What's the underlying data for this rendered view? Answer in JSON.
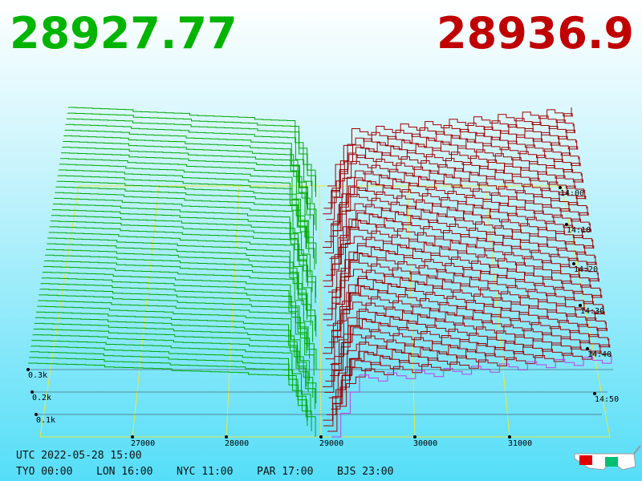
{
  "header": {
    "bid": "28927.77",
    "ask": "28936.9"
  },
  "price_axis": [
    "27000",
    "28000",
    "29000",
    "30000",
    "31000"
  ],
  "time_axis": [
    "14:00",
    "14:10",
    "14:20",
    "14:30",
    "14:40",
    "14:50"
  ],
  "depth_axis": [
    "0.3k",
    "0.2k",
    "0.1k"
  ],
  "footer": {
    "utc": "UTC 2022-05-28 15:00",
    "clocks": [
      "TYO 00:00",
      "LON 16:00",
      "NYC 11:00",
      "PAR 17:00",
      "BJS 23:00"
    ]
  }
}
